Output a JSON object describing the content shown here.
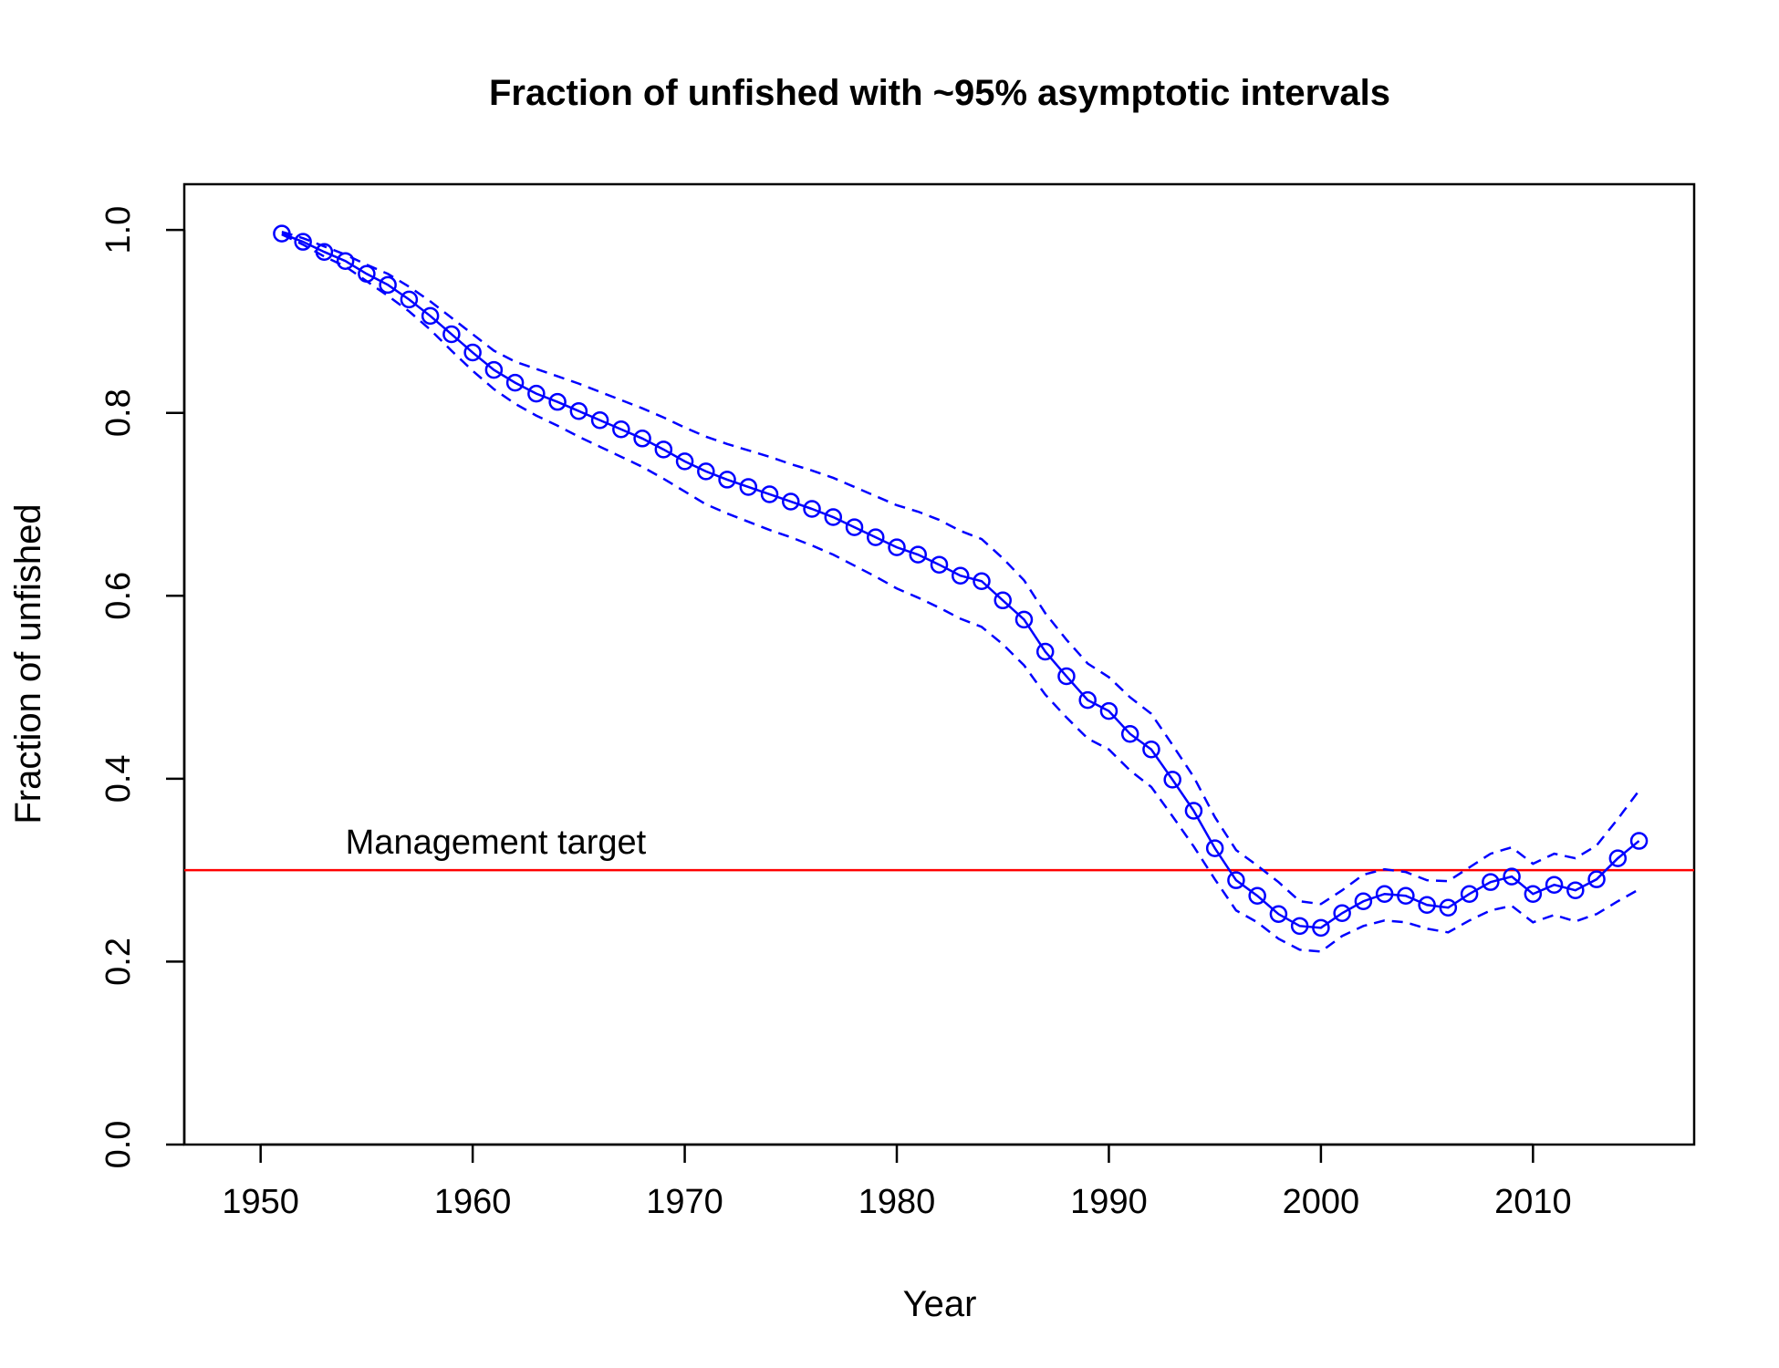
{
  "chart_data": {
    "type": "line",
    "title": "Fraction of unfished with ~95% asymptotic intervals",
    "xlabel": "Year",
    "ylabel": "Fraction of unfished",
    "xlim": [
      1946.4,
      2017.6
    ],
    "ylim": [
      0.0,
      1.05
    ],
    "x_ticks": [
      1950,
      1960,
      1970,
      1980,
      1990,
      2000,
      2010
    ],
    "x_tick_labels": [
      "1950",
      "1960",
      "1970",
      "1980",
      "1990",
      "2000",
      "2010"
    ],
    "y_ticks": [
      0.0,
      0.2,
      0.4,
      0.6,
      0.8,
      1.0
    ],
    "y_tick_labels": [
      "0.0",
      "0.2",
      "0.4",
      "0.6",
      "0.8",
      "1.0"
    ],
    "grid": false,
    "colors": {
      "series": "#0000ff",
      "reference": "#ff0000",
      "axis": "#000000"
    },
    "x": [
      1951,
      1952,
      1953,
      1954,
      1955,
      1956,
      1957,
      1958,
      1959,
      1960,
      1961,
      1962,
      1963,
      1964,
      1965,
      1966,
      1967,
      1968,
      1969,
      1970,
      1971,
      1972,
      1973,
      1974,
      1975,
      1976,
      1977,
      1978,
      1979,
      1980,
      1981,
      1982,
      1983,
      1984,
      1985,
      1986,
      1987,
      1988,
      1989,
      1990,
      1991,
      1992,
      1993,
      1994,
      1995,
      1996,
      1997,
      1998,
      1999,
      2000,
      2001,
      2002,
      2003,
      2004,
      2005,
      2006,
      2007,
      2008,
      2009,
      2010,
      2011,
      2012,
      2013,
      2014,
      2015
    ],
    "series": [
      {
        "role": "estimate",
        "style": "solid-with-circles",
        "values": [
          0.996,
          0.987,
          0.976,
          0.966,
          0.952,
          0.94,
          0.924,
          0.906,
          0.886,
          0.866,
          0.847,
          0.833,
          0.821,
          0.812,
          0.802,
          0.792,
          0.782,
          0.772,
          0.76,
          0.747,
          0.736,
          0.727,
          0.719,
          0.711,
          0.703,
          0.695,
          0.686,
          0.675,
          0.664,
          0.653,
          0.645,
          0.634,
          0.622,
          0.616,
          0.595,
          0.574,
          0.539,
          0.512,
          0.486,
          0.474,
          0.449,
          0.432,
          0.399,
          0.365,
          0.324,
          0.289,
          0.272,
          0.252,
          0.239,
          0.237,
          0.253,
          0.266,
          0.274,
          0.272,
          0.262,
          0.259,
          0.274,
          0.287,
          0.293,
          0.274,
          0.284,
          0.278,
          0.29,
          0.313,
          0.332
        ]
      },
      {
        "role": "upper-interval",
        "style": "dashed",
        "values": [
          0.998,
          0.991,
          0.982,
          0.973,
          0.962,
          0.952,
          0.938,
          0.922,
          0.904,
          0.886,
          0.868,
          0.856,
          0.848,
          0.84,
          0.832,
          0.823,
          0.814,
          0.805,
          0.795,
          0.784,
          0.774,
          0.766,
          0.759,
          0.752,
          0.744,
          0.737,
          0.729,
          0.719,
          0.709,
          0.699,
          0.692,
          0.683,
          0.671,
          0.662,
          0.641,
          0.617,
          0.581,
          0.552,
          0.526,
          0.511,
          0.489,
          0.471,
          0.437,
          0.402,
          0.358,
          0.322,
          0.305,
          0.287,
          0.266,
          0.263,
          0.278,
          0.295,
          0.301,
          0.298,
          0.289,
          0.288,
          0.303,
          0.318,
          0.325,
          0.307,
          0.318,
          0.313,
          0.327,
          0.356,
          0.387
        ]
      },
      {
        "role": "lower-interval",
        "style": "dashed",
        "values": [
          0.995,
          0.984,
          0.971,
          0.96,
          0.944,
          0.928,
          0.911,
          0.891,
          0.868,
          0.846,
          0.826,
          0.81,
          0.797,
          0.786,
          0.774,
          0.763,
          0.752,
          0.741,
          0.728,
          0.714,
          0.7,
          0.69,
          0.681,
          0.672,
          0.664,
          0.655,
          0.645,
          0.633,
          0.621,
          0.608,
          0.598,
          0.587,
          0.575,
          0.566,
          0.547,
          0.524,
          0.492,
          0.467,
          0.444,
          0.432,
          0.409,
          0.391,
          0.359,
          0.326,
          0.29,
          0.256,
          0.243,
          0.225,
          0.213,
          0.211,
          0.228,
          0.239,
          0.245,
          0.243,
          0.236,
          0.232,
          0.245,
          0.256,
          0.261,
          0.243,
          0.251,
          0.244,
          0.252,
          0.266,
          0.279
        ]
      }
    ],
    "reference_line": {
      "y": 0.3,
      "label": "Management target",
      "label_x": 1954
    }
  }
}
